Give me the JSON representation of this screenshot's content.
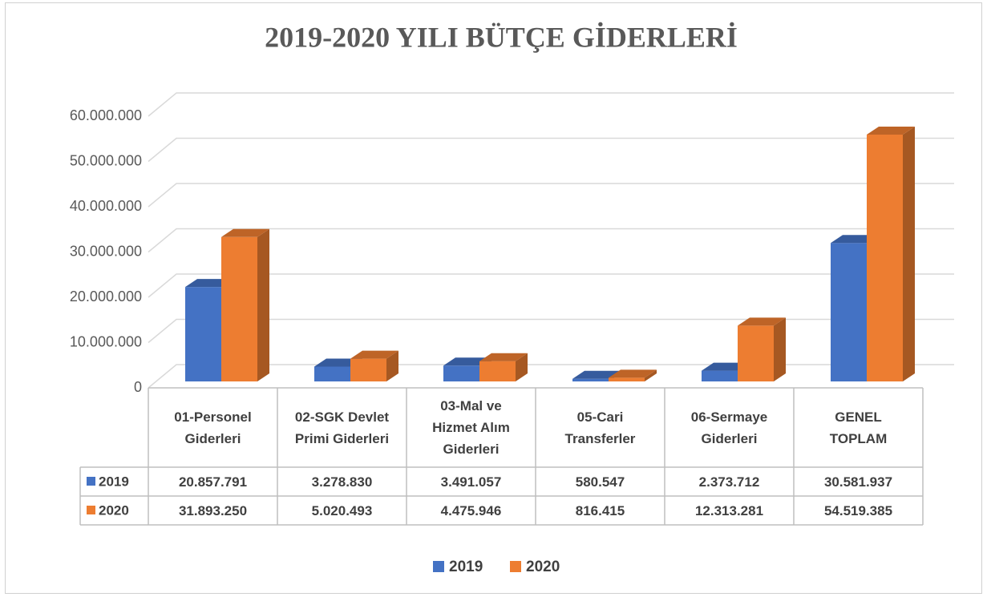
{
  "chart_data": {
    "type": "bar3d",
    "title": "2019-2020 YILI BÜTÇE GİDERLERİ",
    "categories": [
      "01-Personel Giderleri",
      "02-SGK Devlet Primi Giderleri",
      "03-Mal ve Hizmet Alım Giderleri",
      "05-Cari Transferler",
      "06-Sermaye Giderleri",
      "GENEL TOPLAM"
    ],
    "series": [
      {
        "name": "2019",
        "color": "#4472c4",
        "values": [
          20857791,
          3278830,
          3491057,
          580547,
          2373712,
          30581937
        ],
        "value_labels": [
          "20.857.791",
          "3.278.830",
          "3.491.057",
          "580.547",
          "2.373.712",
          "30.581.937"
        ]
      },
      {
        "name": "2020",
        "color": "#ed7d31",
        "values": [
          31893250,
          5020493,
          4475946,
          816415,
          12313281,
          54519385
        ],
        "value_labels": [
          "31.893.250",
          "5.020.493",
          "4.475.946",
          "816.415",
          "12.313.281",
          "54.519.385"
        ]
      }
    ],
    "ylim": [
      0,
      60000000
    ],
    "yticks": [
      0,
      {
        "value": 10000000,
        "label": "10.000.000"
      },
      {
        "value": 20000000,
        "label": "20.000.000"
      },
      {
        "value": 30000000,
        "label": "30.000.000"
      },
      {
        "value": 40000000,
        "label": "40.000.000"
      },
      {
        "value": 50000000,
        "label": "50.000.000"
      },
      {
        "value": 60000000,
        "label": "60.000.000"
      }
    ],
    "grid": true,
    "legend": "bottom"
  }
}
